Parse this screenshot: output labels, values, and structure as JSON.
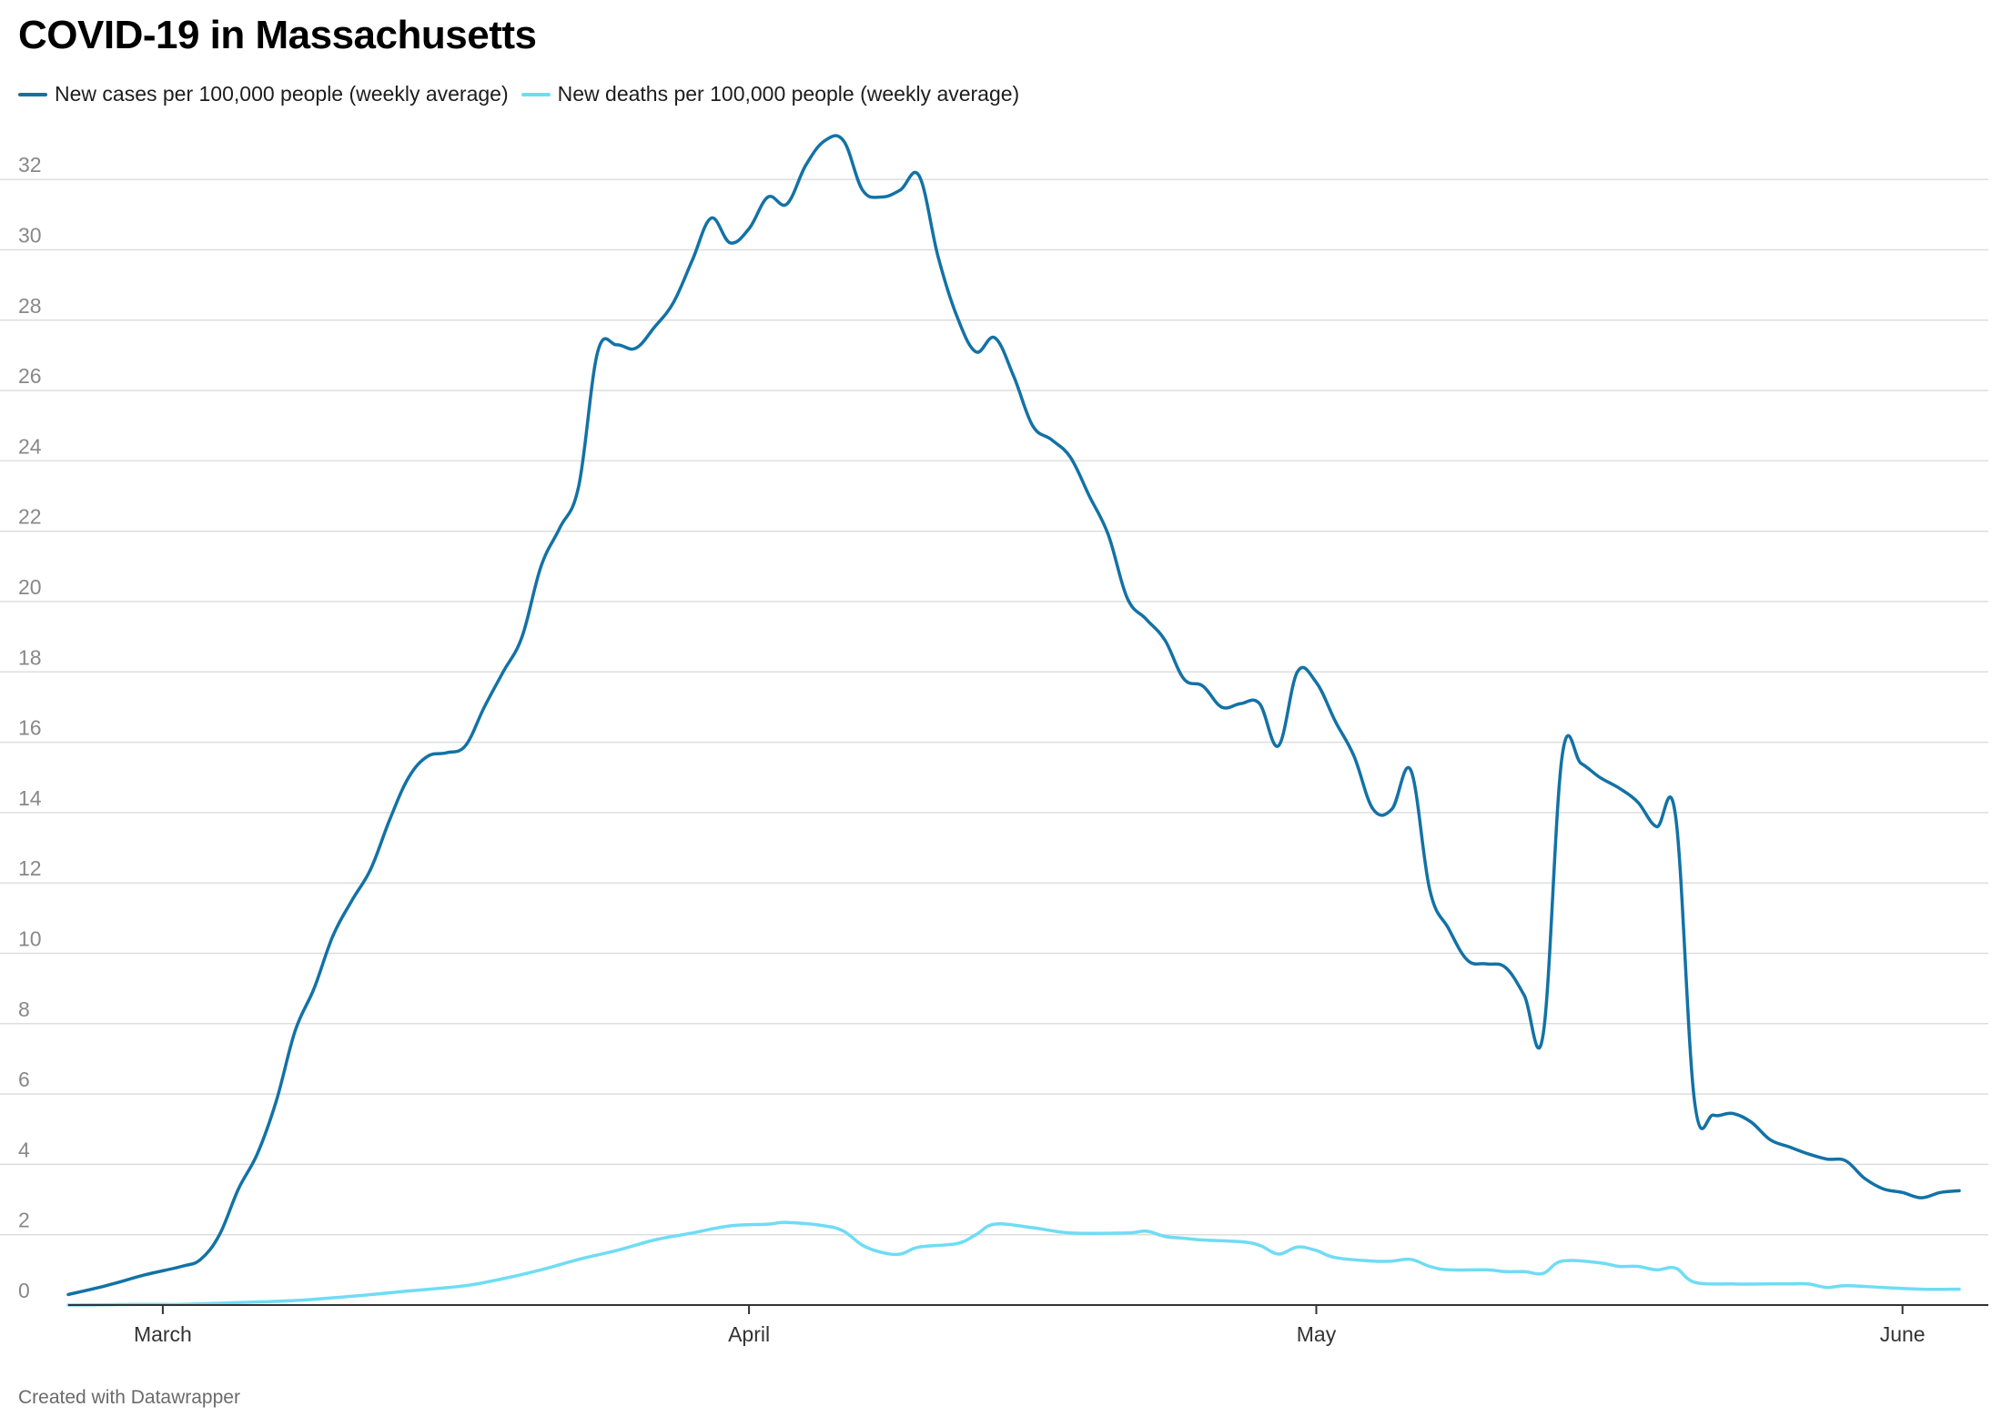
{
  "header": {
    "title": "COVID-19 in Massachusetts"
  },
  "footer": {
    "credit": "Created with Datawrapper"
  },
  "chart_data": {
    "type": "line",
    "title": "COVID-19 in Massachusetts",
    "xlabel": "",
    "ylabel": "",
    "ylim": [
      0,
      33
    ],
    "yticks": [
      0,
      2,
      4,
      6,
      8,
      10,
      12,
      14,
      16,
      18,
      20,
      22,
      24,
      26,
      28,
      30,
      32
    ],
    "x_tick_labels": [
      {
        "label": "March",
        "date": "2020-03-01"
      },
      {
        "label": "April",
        "date": "2020-04-01"
      },
      {
        "label": "May",
        "date": "2020-05-01"
      },
      {
        "label": "June",
        "date": "2020-06-01"
      }
    ],
    "grid": true,
    "legend_position": "top-left",
    "series": [
      {
        "name": "New cases per 100,000 people (weekly average)",
        "color": "#1272a6",
        "points": [
          [
            "2020-02-25",
            0.3
          ],
          [
            "2020-02-27",
            0.55
          ],
          [
            "2020-02-29",
            0.85
          ],
          [
            "2020-03-02",
            1.1
          ],
          [
            "2020-03-03",
            1.3
          ],
          [
            "2020-03-04",
            2.0
          ],
          [
            "2020-03-05",
            3.3
          ],
          [
            "2020-03-06",
            4.3
          ],
          [
            "2020-03-07",
            5.8
          ],
          [
            "2020-03-08",
            7.8
          ],
          [
            "2020-03-09",
            9.0
          ],
          [
            "2020-03-10",
            10.5
          ],
          [
            "2020-03-11",
            11.5
          ],
          [
            "2020-03-12",
            12.4
          ],
          [
            "2020-03-13",
            13.8
          ],
          [
            "2020-03-14",
            15.0
          ],
          [
            "2020-03-15",
            15.6
          ],
          [
            "2020-03-16",
            15.7
          ],
          [
            "2020-03-17",
            15.9
          ],
          [
            "2020-03-18",
            17.0
          ],
          [
            "2020-03-19",
            18.0
          ],
          [
            "2020-03-20",
            19.0
          ],
          [
            "2020-03-21",
            21.0
          ],
          [
            "2020-03-22",
            22.1
          ],
          [
            "2020-03-23",
            23.3
          ],
          [
            "2020-03-24",
            27.1
          ],
          [
            "2020-03-25",
            27.3
          ],
          [
            "2020-03-26",
            27.2
          ],
          [
            "2020-03-27",
            27.8
          ],
          [
            "2020-03-28",
            28.5
          ],
          [
            "2020-03-29",
            29.7
          ],
          [
            "2020-03-30",
            30.9
          ],
          [
            "2020-03-31",
            30.2
          ],
          [
            "2020-04-01",
            30.6
          ],
          [
            "2020-04-02",
            31.5
          ],
          [
            "2020-04-03",
            31.3
          ],
          [
            "2020-04-04",
            32.4
          ],
          [
            "2020-04-05",
            33.1
          ],
          [
            "2020-04-06",
            33.1
          ],
          [
            "2020-04-07",
            31.7
          ],
          [
            "2020-04-08",
            31.5
          ],
          [
            "2020-04-09",
            31.7
          ],
          [
            "2020-04-10",
            32.1
          ],
          [
            "2020-04-11",
            29.8
          ],
          [
            "2020-04-12",
            28.1
          ],
          [
            "2020-04-13",
            27.1
          ],
          [
            "2020-04-14",
            27.5
          ],
          [
            "2020-04-15",
            26.4
          ],
          [
            "2020-04-16",
            25.0
          ],
          [
            "2020-04-17",
            24.6
          ],
          [
            "2020-04-18",
            24.1
          ],
          [
            "2020-04-19",
            23.0
          ],
          [
            "2020-04-20",
            21.9
          ],
          [
            "2020-04-21",
            20.1
          ],
          [
            "2020-04-22",
            19.5
          ],
          [
            "2020-04-23",
            18.9
          ],
          [
            "2020-04-24",
            17.8
          ],
          [
            "2020-04-25",
            17.6
          ],
          [
            "2020-04-26",
            17.0
          ],
          [
            "2020-04-27",
            17.1
          ],
          [
            "2020-04-28",
            17.1
          ],
          [
            "2020-04-29",
            15.9
          ],
          [
            "2020-04-30",
            18.0
          ],
          [
            "2020-05-01",
            17.7
          ],
          [
            "2020-05-02",
            16.6
          ],
          [
            "2020-05-03",
            15.6
          ],
          [
            "2020-05-04",
            14.1
          ],
          [
            "2020-05-05",
            14.1
          ],
          [
            "2020-05-06",
            15.2
          ],
          [
            "2020-05-07",
            11.8
          ],
          [
            "2020-05-08",
            10.7
          ],
          [
            "2020-05-09",
            9.8
          ],
          [
            "2020-05-10",
            9.7
          ],
          [
            "2020-05-11",
            9.6
          ],
          [
            "2020-05-12",
            8.8
          ],
          [
            "2020-05-13",
            7.7
          ],
          [
            "2020-05-14",
            15.6
          ],
          [
            "2020-05-15",
            15.4
          ],
          [
            "2020-05-16",
            15.0
          ],
          [
            "2020-05-17",
            14.7
          ],
          [
            "2020-05-18",
            14.3
          ],
          [
            "2020-05-19",
            13.6
          ],
          [
            "2020-05-20",
            13.9
          ],
          [
            "2020-05-21",
            5.8
          ],
          [
            "2020-05-22",
            5.4
          ],
          [
            "2020-05-23",
            5.45
          ],
          [
            "2020-05-24",
            5.2
          ],
          [
            "2020-05-25",
            4.7
          ],
          [
            "2020-05-26",
            4.5
          ],
          [
            "2020-05-27",
            4.3
          ],
          [
            "2020-05-28",
            4.15
          ],
          [
            "2020-05-29",
            4.1
          ],
          [
            "2020-05-30",
            3.6
          ],
          [
            "2020-05-31",
            3.3
          ],
          [
            "2020-06-01",
            3.2
          ],
          [
            "2020-06-02",
            3.05
          ],
          [
            "2020-06-03",
            3.2
          ],
          [
            "2020-06-04",
            3.25
          ]
        ]
      },
      {
        "name": "New deaths per 100,000 people (weekly average)",
        "color": "#6fdcf5",
        "points": [
          [
            "2020-02-25",
            0.0
          ],
          [
            "2020-02-29",
            0.02
          ],
          [
            "2020-03-02",
            0.02
          ],
          [
            "2020-03-05",
            0.07
          ],
          [
            "2020-03-08",
            0.13
          ],
          [
            "2020-03-11",
            0.25
          ],
          [
            "2020-03-14",
            0.4
          ],
          [
            "2020-03-17",
            0.55
          ],
          [
            "2020-03-19",
            0.75
          ],
          [
            "2020-03-21",
            1.0
          ],
          [
            "2020-03-23",
            1.3
          ],
          [
            "2020-03-25",
            1.55
          ],
          [
            "2020-03-27",
            1.85
          ],
          [
            "2020-03-29",
            2.05
          ],
          [
            "2020-03-31",
            2.25
          ],
          [
            "2020-04-02",
            2.3
          ],
          [
            "2020-04-03",
            2.35
          ],
          [
            "2020-04-05",
            2.25
          ],
          [
            "2020-04-06",
            2.1
          ],
          [
            "2020-04-07",
            1.7
          ],
          [
            "2020-04-08",
            1.5
          ],
          [
            "2020-04-09",
            1.45
          ],
          [
            "2020-04-10",
            1.65
          ],
          [
            "2020-04-12",
            1.75
          ],
          [
            "2020-04-13",
            2.0
          ],
          [
            "2020-04-14",
            2.3
          ],
          [
            "2020-04-16",
            2.2
          ],
          [
            "2020-04-18",
            2.05
          ],
          [
            "2020-04-21",
            2.05
          ],
          [
            "2020-04-22",
            2.1
          ],
          [
            "2020-04-23",
            1.95
          ],
          [
            "2020-04-24",
            1.9
          ],
          [
            "2020-04-25",
            1.85
          ],
          [
            "2020-04-27",
            1.8
          ],
          [
            "2020-04-28",
            1.7
          ],
          [
            "2020-04-29",
            1.45
          ],
          [
            "2020-04-30",
            1.65
          ],
          [
            "2020-05-01",
            1.55
          ],
          [
            "2020-05-02",
            1.35
          ],
          [
            "2020-05-04",
            1.25
          ],
          [
            "2020-05-05",
            1.25
          ],
          [
            "2020-05-06",
            1.3
          ],
          [
            "2020-05-07",
            1.1
          ],
          [
            "2020-05-08",
            1.0
          ],
          [
            "2020-05-10",
            1.0
          ],
          [
            "2020-05-11",
            0.95
          ],
          [
            "2020-05-12",
            0.95
          ],
          [
            "2020-05-13",
            0.9
          ],
          [
            "2020-05-14",
            1.25
          ],
          [
            "2020-05-16",
            1.2
          ],
          [
            "2020-05-17",
            1.1
          ],
          [
            "2020-05-18",
            1.1
          ],
          [
            "2020-05-19",
            1.0
          ],
          [
            "2020-05-20",
            1.05
          ],
          [
            "2020-05-21",
            0.65
          ],
          [
            "2020-05-23",
            0.6
          ],
          [
            "2020-05-25",
            0.6
          ],
          [
            "2020-05-26",
            0.6
          ],
          [
            "2020-05-27",
            0.6
          ],
          [
            "2020-05-28",
            0.5
          ],
          [
            "2020-05-29",
            0.55
          ],
          [
            "2020-05-31",
            0.5
          ],
          [
            "2020-06-02",
            0.45
          ],
          [
            "2020-06-04",
            0.45
          ]
        ]
      }
    ]
  }
}
